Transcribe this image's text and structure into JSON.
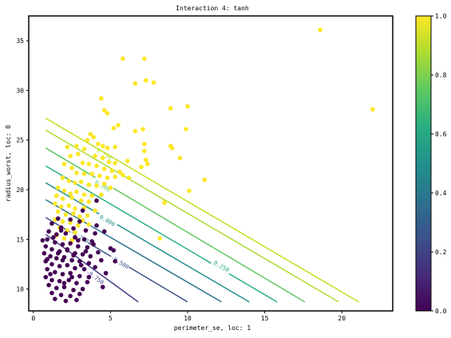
{
  "chart_data": {
    "type": "scatter",
    "title": "Interaction 4: tanh",
    "xlabel": "perimeter_se, loc: 1",
    "ylabel": "radius_worst, loc: 0",
    "xlim": [
      -0.3,
      23.3
    ],
    "ylim": [
      7.8,
      37.5
    ],
    "xticks": [
      0,
      5,
      10,
      15,
      20
    ],
    "yticks": [
      10,
      15,
      20,
      25,
      30,
      35
    ],
    "colorbar": {
      "min": 0.0,
      "max": 1.0,
      "ticks": [
        "0.0",
        "0.2",
        "0.4",
        "0.6",
        "0.8",
        "1.0"
      ]
    },
    "colors": {
      "class_0": "#440154",
      "class_1": "#fde725"
    },
    "contours": [
      {
        "level": -0.75,
        "label": "-0.750",
        "color": "#433e85",
        "x": [
          0.8,
          6.8
        ],
        "y": [
          15.5,
          8.7
        ],
        "label_at": [
          4.0,
          11.2
        ]
      },
      {
        "level": -0.5,
        "label": "-0.500",
        "color": "#3b528b",
        "x": [
          0.8,
          10.0
        ],
        "y": [
          17.2,
          8.7
        ],
        "label_at": [
          5.6,
          12.7
        ]
      },
      {
        "level": -0.25,
        "label": "-0.250",
        "color": "#2c728e",
        "x": [
          0.8,
          12.2
        ],
        "y": [
          19.0,
          8.7
        ],
        "label_at": [
          3.0,
          15.3
        ]
      },
      {
        "level": 0.0,
        "label": "0.000",
        "color": "#21918c",
        "x": [
          0.8,
          14.0
        ],
        "y": [
          20.7,
          8.7
        ],
        "label_at": [
          4.8,
          16.9
        ]
      },
      {
        "level": 0.25,
        "label": "0.250",
        "color": "#28ae80",
        "x": [
          0.8,
          15.8
        ],
        "y": [
          22.4,
          8.7
        ],
        "label_at": [
          12.2,
          12.3
        ]
      },
      {
        "level": 0.5,
        "label": "0.500",
        "color": "#5ec962",
        "x": [
          0.8,
          17.6
        ],
        "y": [
          24.2,
          8.7
        ],
        "label_at": [
          4.5,
          20.4
        ]
      },
      {
        "level": 0.75,
        "label": "0.750",
        "color": "#addc30",
        "x": [
          0.8,
          19.8
        ],
        "y": [
          26.0,
          8.7
        ],
        "label_at": [
          4.6,
          23.6
        ]
      },
      {
        "level": 1.0,
        "label": "",
        "color": "#c2df23",
        "x": [
          0.8,
          21.1
        ],
        "y": [
          27.2,
          8.7
        ]
      }
    ],
    "series": [
      {
        "class": 1,
        "points": [
          [
            18.6,
            36.1
          ],
          [
            22.0,
            28.1
          ],
          [
            5.8,
            33.2
          ],
          [
            7.2,
            33.2
          ],
          [
            6.6,
            30.7
          ],
          [
            7.3,
            31.0
          ],
          [
            7.8,
            30.8
          ],
          [
            4.4,
            29.2
          ],
          [
            4.6,
            28.0
          ],
          [
            4.8,
            27.7
          ],
          [
            8.9,
            28.2
          ],
          [
            10.0,
            28.4
          ],
          [
            5.2,
            26.2
          ],
          [
            5.5,
            26.5
          ],
          [
            9.9,
            26.1
          ],
          [
            7.1,
            26.1
          ],
          [
            6.6,
            25.9
          ],
          [
            3.7,
            25.6
          ],
          [
            3.5,
            25.0
          ],
          [
            3.9,
            25.3
          ],
          [
            4.2,
            24.6
          ],
          [
            4.5,
            24.4
          ],
          [
            4.8,
            24.2
          ],
          [
            5.3,
            24.3
          ],
          [
            7.2,
            24.6
          ],
          [
            8.9,
            24.4
          ],
          [
            9.0,
            24.2
          ],
          [
            2.2,
            24.3
          ],
          [
            2.8,
            24.4
          ],
          [
            3.3,
            24.1
          ],
          [
            7.2,
            23.9
          ],
          [
            4.0,
            23.4
          ],
          [
            4.5,
            23.2
          ],
          [
            4.9,
            22.8
          ],
          [
            5.3,
            22.7
          ],
          [
            6.1,
            22.9
          ],
          [
            7.3,
            23.0
          ],
          [
            9.5,
            23.2
          ],
          [
            2.4,
            23.4
          ],
          [
            2.9,
            23.6
          ],
          [
            3.2,
            22.7
          ],
          [
            3.6,
            22.6
          ],
          [
            4.1,
            22.4
          ],
          [
            4.6,
            22.1
          ],
          [
            5.1,
            21.9
          ],
          [
            5.6,
            21.8
          ],
          [
            7.0,
            22.3
          ],
          [
            7.4,
            22.6
          ],
          [
            2.0,
            22.6
          ],
          [
            2.5,
            22.2
          ],
          [
            2.8,
            21.7
          ],
          [
            3.3,
            21.6
          ],
          [
            3.8,
            21.6
          ],
          [
            4.3,
            21.4
          ],
          [
            4.8,
            21.2
          ],
          [
            5.3,
            21.3
          ],
          [
            5.8,
            21.5
          ],
          [
            6.2,
            21.2
          ],
          [
            11.1,
            21.0
          ],
          [
            1.9,
            21.2
          ],
          [
            2.3,
            20.9
          ],
          [
            2.7,
            20.7
          ],
          [
            3.1,
            20.8
          ],
          [
            3.6,
            20.5
          ],
          [
            4.1,
            20.4
          ],
          [
            4.6,
            20.6
          ],
          [
            5.0,
            20.2
          ],
          [
            10.1,
            19.9
          ],
          [
            1.6,
            20.2
          ],
          [
            2.0,
            19.9
          ],
          [
            2.4,
            19.6
          ],
          [
            2.8,
            19.8
          ],
          [
            3.3,
            19.5
          ],
          [
            3.8,
            19.4
          ],
          [
            4.4,
            19.5
          ],
          [
            1.5,
            19.4
          ],
          [
            1.9,
            19.1
          ],
          [
            2.5,
            19.2
          ],
          [
            3.1,
            18.9
          ],
          [
            3.6,
            18.8
          ],
          [
            8.5,
            18.7
          ],
          [
            1.4,
            18.6
          ],
          [
            1.8,
            18.3
          ],
          [
            2.3,
            18.4
          ],
          [
            2.7,
            18.1
          ],
          [
            3.3,
            18.2
          ],
          [
            1.6,
            17.8
          ],
          [
            2.1,
            17.5
          ],
          [
            2.6,
            17.6
          ],
          [
            3.0,
            17.3
          ],
          [
            3.5,
            17.4
          ],
          [
            1.4,
            17.0
          ],
          [
            1.9,
            16.8
          ],
          [
            2.4,
            16.7
          ],
          [
            2.9,
            16.4
          ],
          [
            1.7,
            16.2
          ],
          [
            2.2,
            15.9
          ],
          [
            2.7,
            15.7
          ],
          [
            1.5,
            15.4
          ],
          [
            2.0,
            15.1
          ],
          [
            8.2,
            15.1
          ],
          [
            2.5,
            14.9
          ],
          [
            3.2,
            16.9
          ],
          [
            3.6,
            16.5
          ],
          [
            4.0,
            17.9
          ]
        ]
      },
      {
        "class": 0,
        "points": [
          [
            4.1,
            18.9
          ],
          [
            3.2,
            17.9
          ],
          [
            1.6,
            17.1
          ],
          [
            2.4,
            17.0
          ],
          [
            3.0,
            16.8
          ],
          [
            4.1,
            16.4
          ],
          [
            4.6,
            15.8
          ],
          [
            1.2,
            16.6
          ],
          [
            1.8,
            16.2
          ],
          [
            2.6,
            16.1
          ],
          [
            3.4,
            15.9
          ],
          [
            4.0,
            15.6
          ],
          [
            1.0,
            15.8
          ],
          [
            1.5,
            15.5
          ],
          [
            2.1,
            15.6
          ],
          [
            2.7,
            15.2
          ],
          [
            3.3,
            15.0
          ],
          [
            3.8,
            14.8
          ],
          [
            0.9,
            15.0
          ],
          [
            1.4,
            14.7
          ],
          [
            1.9,
            14.5
          ],
          [
            2.4,
            14.6
          ],
          [
            2.9,
            14.3
          ],
          [
            3.5,
            14.2
          ],
          [
            5.0,
            14.1
          ],
          [
            5.2,
            13.9
          ],
          [
            0.8,
            14.3
          ],
          [
            1.2,
            14.0
          ],
          [
            1.7,
            13.8
          ],
          [
            2.2,
            13.9
          ],
          [
            2.7,
            13.6
          ],
          [
            3.2,
            13.5
          ],
          [
            3.7,
            13.3
          ],
          [
            4.2,
            13.7
          ],
          [
            0.7,
            13.6
          ],
          [
            1.1,
            13.3
          ],
          [
            1.5,
            13.1
          ],
          [
            2.0,
            13.2
          ],
          [
            2.5,
            12.9
          ],
          [
            3.0,
            12.8
          ],
          [
            3.6,
            12.6
          ],
          [
            4.4,
            12.9
          ],
          [
            5.3,
            12.8
          ],
          [
            0.8,
            12.8
          ],
          [
            1.2,
            12.5
          ],
          [
            1.7,
            12.3
          ],
          [
            2.2,
            12.4
          ],
          [
            2.7,
            12.1
          ],
          [
            3.3,
            12.0
          ],
          [
            4.0,
            12.2
          ],
          [
            0.9,
            12.0
          ],
          [
            1.4,
            11.7
          ],
          [
            1.9,
            11.5
          ],
          [
            2.4,
            11.6
          ],
          [
            3.0,
            11.3
          ],
          [
            3.6,
            11.2
          ],
          [
            4.7,
            11.6
          ],
          [
            0.8,
            11.2
          ],
          [
            1.2,
            10.9
          ],
          [
            1.7,
            10.8
          ],
          [
            2.3,
            10.9
          ],
          [
            2.8,
            10.6
          ],
          [
            3.5,
            10.7
          ],
          [
            4.5,
            10.2
          ],
          [
            1.0,
            10.4
          ],
          [
            1.5,
            10.1
          ],
          [
            2.0,
            10.2
          ],
          [
            2.6,
            9.9
          ],
          [
            3.2,
            10.0
          ],
          [
            1.2,
            9.6
          ],
          [
            1.8,
            9.4
          ],
          [
            2.4,
            9.3
          ],
          [
            3.0,
            9.5
          ],
          [
            1.4,
            9.0
          ],
          [
            2.1,
            8.8
          ],
          [
            2.8,
            8.9
          ],
          [
            1.6,
            13.6
          ],
          [
            2.9,
            14.9
          ],
          [
            1.3,
            15.2
          ],
          [
            2.2,
            14.0
          ],
          [
            3.1,
            12.4
          ],
          [
            1.9,
            12.9
          ],
          [
            0.6,
            14.9
          ],
          [
            2.6,
            13.4
          ],
          [
            3.9,
            14.5
          ],
          [
            1.1,
            11.5
          ],
          [
            2.0,
            10.6
          ],
          [
            3.4,
            13.8
          ],
          [
            1.8,
            15.9
          ],
          [
            2.5,
            11.2
          ],
          [
            0.9,
            13.0
          ]
        ]
      }
    ]
  }
}
